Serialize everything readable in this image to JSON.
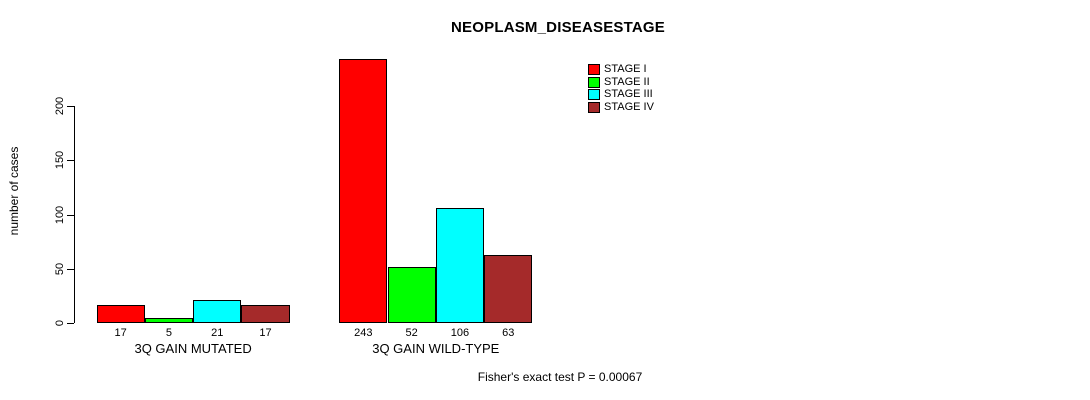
{
  "chart_data": {
    "type": "bar",
    "title": "NEOPLASM_DISEASESTAGE",
    "ylabel": "number of cases",
    "xlabel": "",
    "ylim": [
      0,
      200
    ],
    "yticks": [
      0,
      50,
      100,
      150,
      200
    ],
    "grid": false,
    "legend_position": "top-right",
    "categories": [
      "3Q GAIN MUTATED",
      "3Q GAIN WILD-TYPE"
    ],
    "series": [
      {
        "name": "STAGE I",
        "color": "#ff0000",
        "values": [
          17,
          243
        ]
      },
      {
        "name": "STAGE II",
        "color": "#00ff00",
        "values": [
          5,
          52
        ]
      },
      {
        "name": "STAGE III",
        "color": "#00ffff",
        "values": [
          21,
          106
        ]
      },
      {
        "name": "STAGE IV",
        "color": "#a52a2a",
        "values": [
          17,
          63
        ]
      }
    ],
    "bar_value_labels": [
      [
        17,
        5,
        21,
        17
      ],
      [
        243,
        52,
        106,
        63
      ]
    ],
    "footnote": "Fisher's exact test P = 0.00067"
  }
}
